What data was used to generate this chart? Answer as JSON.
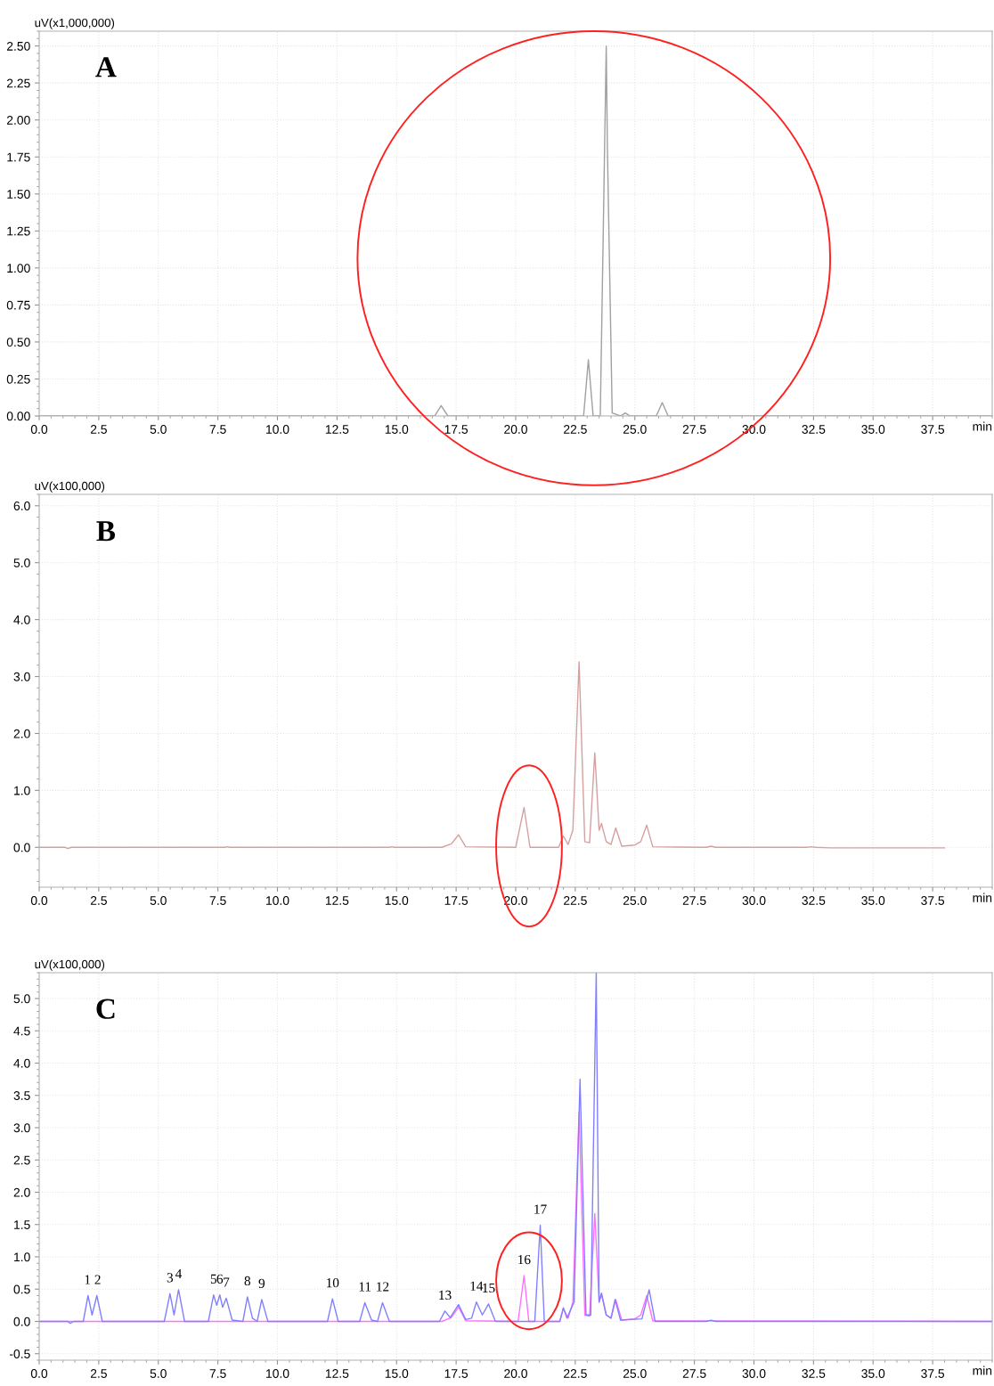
{
  "chart_data": [
    {
      "type": "line",
      "title": "A",
      "ylabel": "uV(x1,000,000)",
      "xlabel": "min",
      "xlim": [
        0,
        40
      ],
      "ylim": [
        0,
        2.6
      ],
      "grid": true,
      "legend": false,
      "marker": "none",
      "line_style": "solid",
      "xticks": [
        {
          "value": 0,
          "label": "0.0"
        },
        2.5,
        {
          "value": 5,
          "label": "5.0"
        },
        7.5,
        {
          "value": 10,
          "label": "10.0"
        },
        12.5,
        {
          "value": 15,
          "label": "15.0"
        },
        17.5,
        {
          "value": 20,
          "label": "20.0"
        },
        22.5,
        {
          "value": 25,
          "label": "25.0"
        },
        27.5,
        {
          "value": 30,
          "label": "30.0"
        },
        32.5,
        {
          "value": 35,
          "label": "35.0"
        },
        37.5
      ],
      "yticks": [
        {
          "value": 0,
          "label": "0.00"
        },
        {
          "value": 0.25,
          "label": "0.25"
        },
        {
          "value": 0.5,
          "label": "0.50"
        },
        {
          "value": 0.75,
          "label": "0.75"
        },
        {
          "value": 1,
          "label": "1.00"
        },
        {
          "value": 1.25,
          "label": "1.25"
        },
        {
          "value": 1.5,
          "label": "1.50"
        },
        {
          "value": 1.75,
          "label": "1.75"
        },
        {
          "value": 2,
          "label": "2.00"
        },
        {
          "value": 2.25,
          "label": "2.25"
        },
        {
          "value": 2.5,
          "label": "2.50"
        }
      ],
      "series": [
        {
          "color": "#a0a0a0",
          "x": [
            0,
            16.6,
            16.87,
            17.15,
            22.85,
            23.05,
            23.25,
            23.55,
            23.8,
            23.85,
            24.05,
            24.4,
            24.6,
            24.8,
            25.9,
            26.15,
            26.4,
            40
          ],
          "values": [
            0,
            0,
            0.07,
            0,
            0,
            0.38,
            0,
            0,
            2.5,
            1.8,
            0.02,
            0,
            0.02,
            0,
            0,
            0.09,
            0,
            0
          ]
        }
      ]
    },
    {
      "type": "line",
      "title": "B",
      "ylabel": "uV(x100,000)",
      "xlabel": "min",
      "xlim": [
        0,
        40
      ],
      "ylim": [
        -0.7,
        6.2
      ],
      "grid": true,
      "legend": false,
      "marker": "none",
      "line_style": "solid",
      "xticks": [
        {
          "value": 0,
          "label": "0.0"
        },
        2.5,
        {
          "value": 5,
          "label": "5.0"
        },
        7.5,
        {
          "value": 10,
          "label": "10.0"
        },
        12.5,
        {
          "value": 15,
          "label": "15.0"
        },
        17.5,
        {
          "value": 20,
          "label": "20.0"
        },
        22.5,
        {
          "value": 25,
          "label": "25.0"
        },
        27.5,
        {
          "value": 30,
          "label": "30.0"
        },
        32.5,
        {
          "value": 35,
          "label": "35.0"
        },
        37.5
      ],
      "yticks": [
        {
          "value": 0,
          "label": "0.0"
        },
        {
          "value": 1,
          "label": "1.0"
        },
        {
          "value": 2,
          "label": "2.0"
        },
        {
          "value": 3,
          "label": "3.0"
        },
        {
          "value": 4,
          "label": "4.0"
        },
        {
          "value": 5,
          "label": "5.0"
        },
        {
          "value": 6,
          "label": "6.0"
        }
      ],
      "series": [
        {
          "color": "#d4a0a0",
          "x": [
            0,
            1.1,
            1.2,
            1.35,
            7.8,
            7.9,
            8.0,
            14.7,
            14.8,
            14.9,
            16.9,
            17.3,
            17.6,
            17.9,
            20.0,
            20.35,
            20.6,
            21.8,
            22.0,
            22.2,
            22.4,
            22.66,
            22.9,
            23.1,
            23.32,
            23.5,
            23.6,
            23.8,
            24.0,
            24.2,
            24.45,
            25.0,
            25.25,
            25.5,
            25.75,
            28.0,
            28.2,
            28.4,
            32.2,
            32.4,
            32.6,
            33.2,
            38.0
          ],
          "values": [
            0,
            0,
            -0.02,
            0,
            0,
            0.01,
            0,
            0,
            0.01,
            0,
            0,
            0.06,
            0.22,
            0.01,
            0,
            0.7,
            0,
            0,
            0.2,
            0.05,
            0.3,
            3.26,
            0.1,
            0.08,
            1.66,
            0.3,
            0.42,
            0.1,
            0.05,
            0.34,
            0.02,
            0.04,
            0.1,
            0.39,
            0.01,
            0,
            0.02,
            0,
            0,
            0.01,
            0,
            -0.01,
            -0.01
          ]
        }
      ]
    },
    {
      "type": "line",
      "title": "C",
      "ylabel": "uV(x100,000)",
      "xlabel": "min",
      "xlim": [
        0,
        40
      ],
      "ylim": [
        -0.6,
        5.4
      ],
      "grid": true,
      "legend": false,
      "marker": "none",
      "line_style": "solid",
      "xticks": [
        {
          "value": 0,
          "label": "0.0"
        },
        2.5,
        {
          "value": 5,
          "label": "5.0"
        },
        7.5,
        {
          "value": 10,
          "label": "10.0"
        },
        12.5,
        {
          "value": 15,
          "label": "15.0"
        },
        17.5,
        {
          "value": 20,
          "label": "20.0"
        },
        22.5,
        {
          "value": 25,
          "label": "25.0"
        },
        27.5,
        {
          "value": 30,
          "label": "30.0"
        },
        32.5,
        {
          "value": 35,
          "label": "35.0"
        },
        37.5
      ],
      "yticks": [
        -0.5,
        {
          "value": 0,
          "label": "0.0"
        },
        0.5,
        {
          "value": 1,
          "label": "1.0"
        },
        1.5,
        {
          "value": 2,
          "label": "2.0"
        },
        2.5,
        {
          "value": 3,
          "label": "3.0"
        },
        3.5,
        {
          "value": 4,
          "label": "4.0"
        },
        4.5,
        {
          "value": 5,
          "label": "5.0"
        }
      ],
      "series": [
        {
          "color": "#ff70ff",
          "x": [
            0,
            16.9,
            17.3,
            17.6,
            17.9,
            20.1,
            20.35,
            20.55,
            21.85,
            22.0,
            22.2,
            22.4,
            22.66,
            22.9,
            23.1,
            23.32,
            23.5,
            23.6,
            23.8,
            24.0,
            24.2,
            24.45,
            25.0,
            25.25,
            25.5,
            25.75,
            40
          ],
          "values": [
            0,
            0,
            0.06,
            0.22,
            0.01,
            0,
            0.71,
            0,
            0,
            0.2,
            0.05,
            0.3,
            3.25,
            0.1,
            0.08,
            1.67,
            0.3,
            0.42,
            0.1,
            0.05,
            0.34,
            0.02,
            0.04,
            0.1,
            0.4,
            0.01,
            0
          ]
        },
        {
          "color": "#8080ff",
          "x": [
            0,
            1.2,
            1.3,
            1.45,
            1.85,
            2.05,
            2.22,
            2.42,
            2.65,
            5.25,
            5.49,
            5.66,
            5.85,
            6.1,
            7.1,
            7.32,
            7.45,
            7.58,
            7.7,
            7.85,
            8.1,
            8.55,
            8.74,
            8.95,
            9.15,
            9.34,
            9.6,
            12.1,
            12.31,
            12.55,
            13.45,
            13.67,
            13.95,
            14.2,
            14.41,
            14.7,
            16.8,
            17.03,
            17.25,
            17.6,
            17.9,
            18.15,
            18.35,
            18.6,
            18.86,
            19.15,
            20.8,
            21.03,
            21.2,
            21.85,
            22.0,
            22.15,
            22.45,
            22.7,
            22.95,
            23.15,
            23.38,
            23.5,
            23.6,
            23.8,
            24.0,
            24.17,
            24.4,
            25.3,
            25.6,
            25.85,
            28.0,
            28.2,
            28.4,
            40
          ],
          "values": [
            0,
            0,
            -0.03,
            0,
            0,
            0.4,
            0.1,
            0.4,
            0,
            0,
            0.43,
            0.1,
            0.49,
            0,
            0,
            0.41,
            0.25,
            0.41,
            0.22,
            0.36,
            0.02,
            0,
            0.38,
            0.05,
            0,
            0.34,
            0,
            0,
            0.35,
            0,
            0,
            0.29,
            0.02,
            0,
            0.29,
            0,
            0,
            0.16,
            0.06,
            0.26,
            0.03,
            0.05,
            0.3,
            0.1,
            0.27,
            0,
            0,
            1.49,
            0,
            0,
            0.21,
            0.05,
            0.3,
            3.75,
            0.1,
            0.1,
            5.4,
            0.3,
            0.44,
            0.1,
            0.05,
            0.34,
            0.02,
            0.04,
            0.49,
            0,
            0,
            0.02,
            0,
            0
          ]
        }
      ],
      "annotations": [
        {
          "text": "1 2",
          "x": 2.24,
          "y": 0.4
        },
        {
          "text": "3",
          "x": 5.49,
          "y": 0.43
        },
        {
          "text": "4",
          "x": 5.85,
          "y": 0.49
        },
        {
          "text": "5",
          "x": 7.32,
          "y": 0.41
        },
        {
          "text": "6",
          "x": 7.58,
          "y": 0.41
        },
        {
          "text": "7",
          "x": 7.85,
          "y": 0.36
        },
        {
          "text": "8",
          "x": 8.74,
          "y": 0.38
        },
        {
          "text": "9",
          "x": 9.34,
          "y": 0.34
        },
        {
          "text": "10",
          "x": 12.31,
          "y": 0.35
        },
        {
          "text": "11",
          "x": 13.67,
          "y": 0.29
        },
        {
          "text": "12",
          "x": 14.41,
          "y": 0.29
        },
        {
          "text": "13",
          "x": 17.03,
          "y": 0.16
        },
        {
          "text": "14",
          "x": 18.35,
          "y": 0.3
        },
        {
          "text": "15",
          "x": 18.86,
          "y": 0.27
        },
        {
          "text": "16",
          "x": 20.35,
          "y": 0.71
        },
        {
          "text": "17",
          "x": 21.03,
          "y": 1.49
        }
      ]
    }
  ]
}
